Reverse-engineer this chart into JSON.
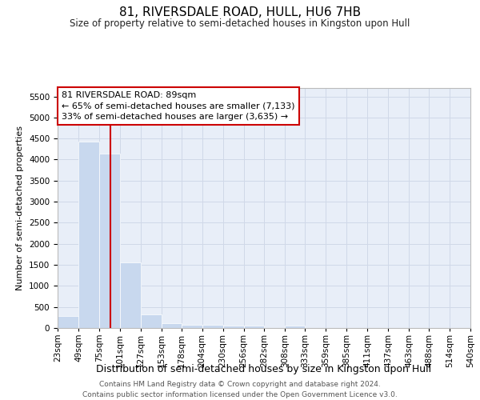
{
  "title": "81, RIVERSDALE ROAD, HULL, HU6 7HB",
  "subtitle": "Size of property relative to semi-detached houses in Kingston upon Hull",
  "xlabel": "Distribution of semi-detached houses by size in Kingston upon Hull",
  "ylabel": "Number of semi-detached properties",
  "footer_line1": "Contains HM Land Registry data © Crown copyright and database right 2024.",
  "footer_line2": "Contains public sector information licensed under the Open Government Licence v3.0.",
  "annotation_title": "81 RIVERSDALE ROAD: 89sqm",
  "annotation_line2": "← 65% of semi-detached houses are smaller (7,133)",
  "annotation_line3": "33% of semi-detached houses are larger (3,635) →",
  "property_size": 89,
  "bar_color": "#c8d8ee",
  "grid_color": "#d0d8e8",
  "line_color": "#cc0000",
  "annotation_box_color": "#cc0000",
  "background_color": "#e8eef8",
  "bins": [
    23,
    49,
    75,
    101,
    127,
    153,
    178,
    204,
    230,
    256,
    282,
    308,
    333,
    359,
    385,
    411,
    437,
    463,
    488,
    514,
    540
  ],
  "counts": [
    290,
    4430,
    4150,
    1550,
    330,
    120,
    80,
    70,
    60,
    65,
    0,
    60,
    0,
    0,
    0,
    0,
    0,
    0,
    0,
    0
  ],
  "ylim": [
    0,
    5700
  ],
  "yticks": [
    0,
    500,
    1000,
    1500,
    2000,
    2500,
    3000,
    3500,
    4000,
    4500,
    5000,
    5500
  ],
  "title_fontsize": 11,
  "subtitle_fontsize": 8.5,
  "xlabel_fontsize": 9,
  "ylabel_fontsize": 8,
  "tick_fontsize": 7.5,
  "annotation_fontsize": 8,
  "footer_fontsize": 6.5
}
